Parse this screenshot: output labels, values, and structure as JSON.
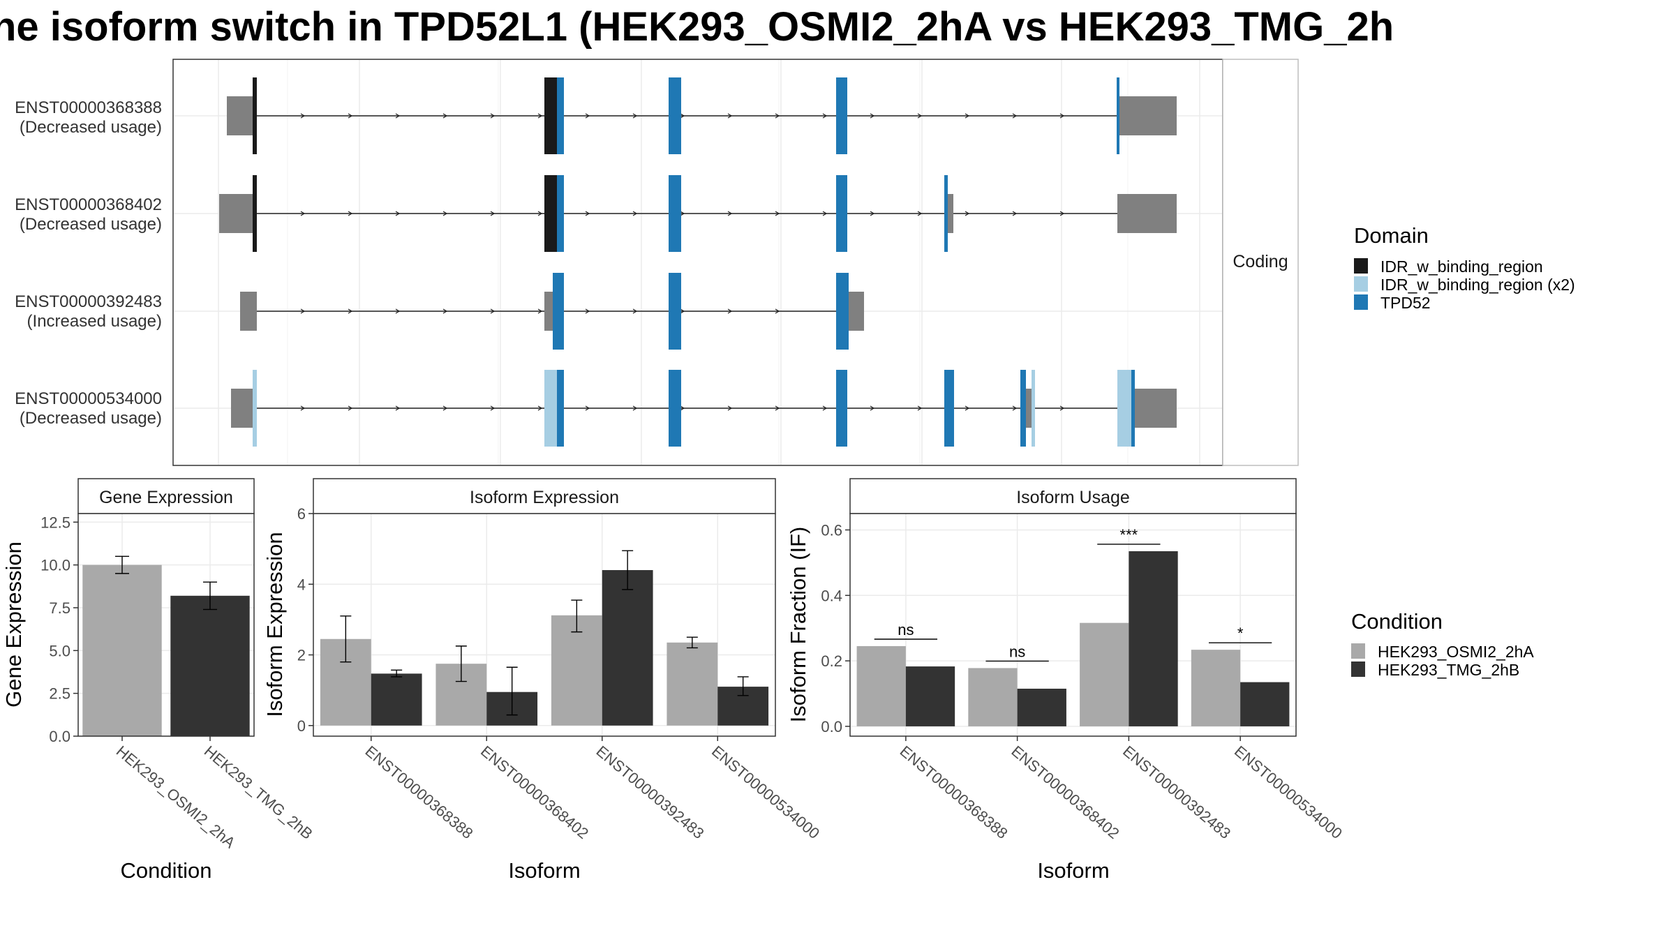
{
  "title": "ne isoform switch in TPD52L1 (HEK293_OSMI2_2hA vs HEK293_TMG_2h",
  "colors": {
    "IDR_w_binding_region": "#1a1a1a",
    "IDR_w_binding_region_x2": "#a6cee3",
    "TPD52": "#1f78b4",
    "utr": "#808080",
    "cond1": "#a9a9a9",
    "cond2": "#333333"
  },
  "structure": {
    "facet_label": "Coding",
    "transcripts": [
      {
        "id": "ENST00000368388",
        "usage": "(Decreased usage)"
      },
      {
        "id": "ENST00000368402",
        "usage": "(Decreased usage)"
      },
      {
        "id": "ENST00000392483",
        "usage": "(Increased usage)"
      },
      {
        "id": "ENST00000534000",
        "usage": "(Decreased usage)"
      }
    ]
  },
  "legend_domain": {
    "title": "Domain",
    "items": [
      "IDR_w_binding_region",
      "IDR_w_binding_region (x2)",
      "TPD52"
    ]
  },
  "legend_condition": {
    "title": "Condition",
    "items": [
      "HEK293_OSMI2_2hA",
      "HEK293_TMG_2hB"
    ]
  },
  "chart_data": [
    {
      "type": "bar",
      "title": "Gene Expression",
      "xlabel": "Condition",
      "ylabel": "Gene Expression",
      "categories": [
        "HEK293_OSMI2_2hA",
        "HEK293_TMG_2hB"
      ],
      "values": [
        10.0,
        8.2
      ],
      "error_low": [
        9.5,
        7.4
      ],
      "error_high": [
        10.5,
        9.0
      ],
      "yticks": [
        "0.0",
        "2.5",
        "5.0",
        "7.5",
        "10.0",
        "12.5"
      ],
      "ylim": [
        0,
        13
      ]
    },
    {
      "type": "bar",
      "title": "Isoform Expression",
      "xlabel": "Isoform",
      "ylabel": "Isoform Expression",
      "categories": [
        "ENST00000368388",
        "ENST00000368402",
        "ENST00000392483",
        "ENST00000534000"
      ],
      "series": [
        {
          "name": "HEK293_OSMI2_2hA",
          "values": [
            2.45,
            1.75,
            3.12,
            2.35
          ],
          "error_low": [
            1.8,
            1.25,
            2.65,
            2.2
          ],
          "error_high": [
            3.1,
            2.25,
            3.55,
            2.5
          ]
        },
        {
          "name": "HEK293_TMG_2hB",
          "values": [
            1.47,
            0.95,
            4.4,
            1.1
          ],
          "error_low": [
            1.38,
            0.3,
            3.85,
            0.85
          ],
          "error_high": [
            1.57,
            1.65,
            4.95,
            1.38
          ]
        }
      ],
      "yticks": [
        "0",
        "2",
        "4",
        "6"
      ],
      "ylim": [
        -0.3,
        6.0
      ]
    },
    {
      "type": "bar",
      "title": "Isoform Usage",
      "xlabel": "Isoform",
      "ylabel": "Isoform Fraction (IF)",
      "categories": [
        "ENST00000368388",
        "ENST00000368402",
        "ENST00000392483",
        "ENST00000534000"
      ],
      "series": [
        {
          "name": "HEK293_OSMI2_2hA",
          "values": [
            0.245,
            0.178,
            0.316,
            0.234
          ]
        },
        {
          "name": "HEK293_TMG_2hB",
          "values": [
            0.183,
            0.115,
            0.535,
            0.135
          ]
        }
      ],
      "significance": [
        "ns",
        "ns",
        "***",
        "*"
      ],
      "yticks": [
        "0.0",
        "0.2",
        "0.4",
        "0.6"
      ],
      "ylim": [
        -0.03,
        0.65
      ]
    }
  ]
}
